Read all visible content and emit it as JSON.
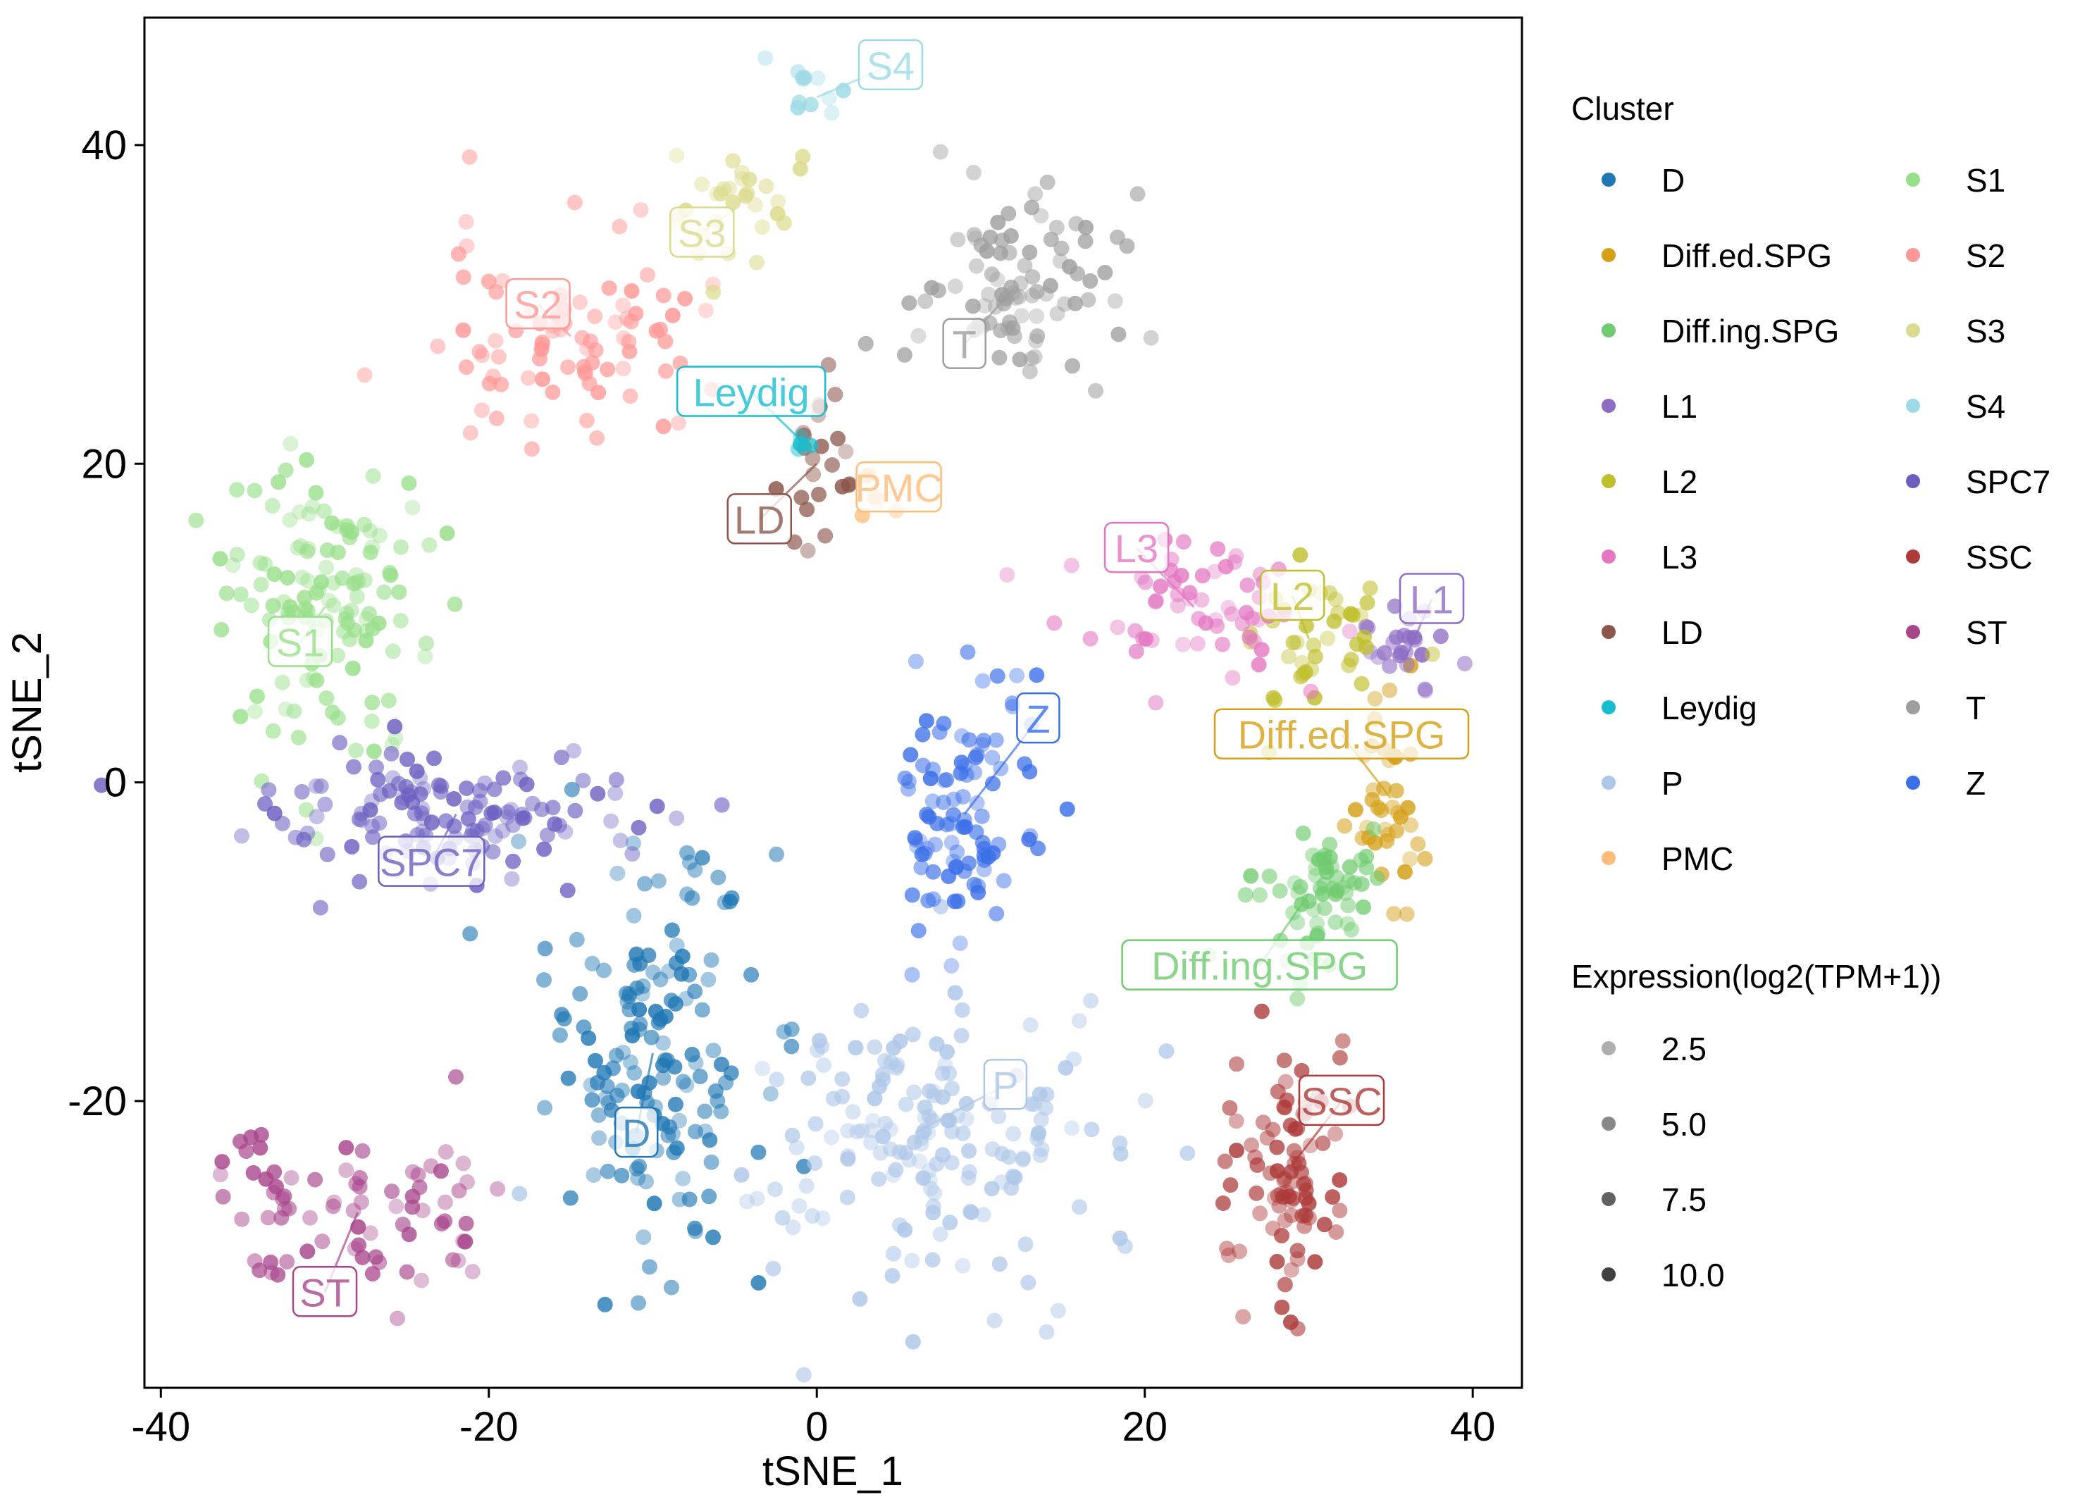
{
  "chart_data": {
    "type": "scatter",
    "xlabel": "tSNE_1",
    "ylabel": "tSNE_2",
    "xlim": [
      -41,
      43
    ],
    "ylim": [
      -38,
      48
    ],
    "x_ticks": [
      -40,
      -20,
      0,
      20,
      40
    ],
    "y_ticks": [
      40,
      20,
      0,
      -20
    ],
    "grid": false,
    "legend_placement": "right",
    "color_legend_title": "Cluster",
    "size_legend_title": "Expression(log2(TPM+1))",
    "size_legend_values": [
      "2.5",
      "5.0",
      "7.5",
      "10.0"
    ],
    "clusters": [
      {
        "name": "D",
        "color": "#1f77b4",
        "center": [
          -10,
          -17
        ],
        "spread": [
          3.2,
          6.5
        ],
        "n": 160,
        "label": "D",
        "label_pos": [
          -11,
          -22
        ]
      },
      {
        "name": "Diff.ed.SPG",
        "color": "#d4a017",
        "center": [
          35,
          -1
        ],
        "spread": [
          1.2,
          3.0
        ],
        "n": 40,
        "label": "Diff.ed.SPG",
        "label_pos": [
          32,
          3
        ]
      },
      {
        "name": "Diff.ing.SPG",
        "color": "#6fcb6f",
        "center": [
          30,
          -7
        ],
        "spread": [
          1.8,
          2.5
        ],
        "n": 60,
        "label": "Diff.ing.SPG",
        "label_pos": [
          27,
          -11.5
        ]
      },
      {
        "name": "L1",
        "color": "#8e6cc4",
        "center": [
          36,
          8
        ],
        "spread": [
          2.0,
          1.6
        ],
        "n": 25,
        "label": "L1",
        "label_pos": [
          37.5,
          11.5
        ]
      },
      {
        "name": "L2",
        "color": "#bfbf2c",
        "center": [
          30,
          9
        ],
        "spread": [
          2.3,
          2.5
        ],
        "n": 40,
        "label": "L2",
        "label_pos": [
          29,
          11.7
        ]
      },
      {
        "name": "L3",
        "color": "#e377c2",
        "center": [
          23,
          11
        ],
        "spread": [
          4.0,
          2.0
        ],
        "n": 60,
        "label": "L3",
        "label_pos": [
          19.5,
          14.7
        ]
      },
      {
        "name": "LD",
        "color": "#8c564b",
        "center": [
          0,
          20
        ],
        "spread": [
          1.2,
          2.6
        ],
        "n": 25,
        "label": "LD",
        "label_pos": [
          -3.5,
          16.5
        ]
      },
      {
        "name": "Leydig",
        "color": "#17becf",
        "center": [
          -1,
          21.5
        ],
        "spread": [
          0.5,
          0.5
        ],
        "n": 4,
        "label": "Leydig",
        "label_pos": [
          -4,
          24.5
        ]
      },
      {
        "name": "P",
        "color": "#aec7e8",
        "center": [
          6,
          -22
        ],
        "spread": [
          6.0,
          4.5
        ],
        "n": 170,
        "label": "P",
        "label_pos": [
          11.5,
          -19
        ]
      },
      {
        "name": "PMC",
        "color": "#ffbb78",
        "center": [
          4,
          18
        ],
        "spread": [
          1.5,
          1.0
        ],
        "n": 6,
        "label": "PMC",
        "label_pos": [
          5,
          18.5
        ]
      },
      {
        "name": "S1",
        "color": "#98df8a",
        "center": [
          -30,
          11
        ],
        "spread": [
          3.5,
          4.5
        ],
        "n": 130,
        "label": "S1",
        "label_pos": [
          -31.5,
          8.8
        ]
      },
      {
        "name": "S2",
        "color": "#ff9896",
        "center": [
          -15,
          28
        ],
        "spread": [
          4.0,
          3.2
        ],
        "n": 90,
        "label": "S2",
        "label_pos": [
          -17,
          30
        ]
      },
      {
        "name": "S3",
        "color": "#dbdb8d",
        "center": [
          -5,
          36
        ],
        "spread": [
          2.5,
          2.0
        ],
        "n": 30,
        "label": "S3",
        "label_pos": [
          -7,
          34.5
        ]
      },
      {
        "name": "S4",
        "color": "#9edae5",
        "center": [
          0,
          43
        ],
        "spread": [
          1.5,
          1.0
        ],
        "n": 12,
        "label": "S4",
        "label_pos": [
          4.5,
          45
        ]
      },
      {
        "name": "SPC7",
        "color": "#6a5fc1",
        "center": [
          -22,
          -2
        ],
        "spread": [
          6.5,
          2.0
        ],
        "n": 130,
        "label": "SPC7",
        "label_pos": [
          -23.5,
          -5
        ]
      },
      {
        "name": "SSC",
        "color": "#ad3a3a",
        "center": [
          29,
          -24
        ],
        "spread": [
          1.6,
          4.0
        ],
        "n": 90,
        "label": "SSC",
        "label_pos": [
          32,
          -20
        ]
      },
      {
        "name": "ST",
        "color": "#a8468c",
        "center": [
          -28,
          -27
        ],
        "spread": [
          4.5,
          2.5
        ],
        "n": 80,
        "label": "ST",
        "label_pos": [
          -30,
          -32
        ]
      },
      {
        "name": "T",
        "color": "#9e9e9e",
        "center": [
          12,
          31
        ],
        "spread": [
          3.0,
          3.0
        ],
        "n": 90,
        "label": "T",
        "label_pos": [
          9,
          27.5
        ]
      },
      {
        "name": "Z",
        "color": "#3b6fe8",
        "center": [
          9,
          -2
        ],
        "spread": [
          2.0,
          5.0
        ],
        "n": 100,
        "label": "Z",
        "label_pos": [
          13.5,
          4
        ]
      }
    ]
  }
}
